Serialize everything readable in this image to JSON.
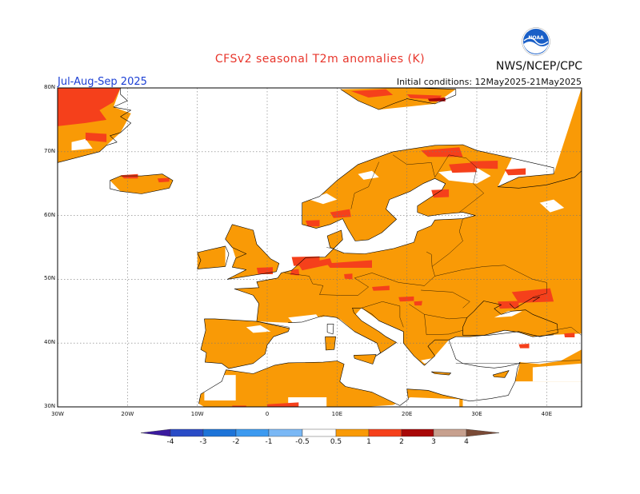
{
  "header": {
    "title": "CFSv2 seasonal T2m anomalies (K)",
    "org": "NWS/NCEP/CPC",
    "period": "Jul-Aug-Sep 2025",
    "initial_conditions": "Initial conditions: 12May2025-21May2025",
    "logo_text": "NOAA"
  },
  "map": {
    "projection": "lat-lon",
    "lon_range": [
      -30,
      45
    ],
    "lat_range": [
      30,
      80
    ],
    "lat_labels": [
      "80N",
      "70N",
      "60N",
      "50N",
      "40N",
      "30N"
    ],
    "lon_labels": [
      "30W",
      "20W",
      "10W",
      "0",
      "10E",
      "20E",
      "30E",
      "40E"
    ],
    "grid": true,
    "ocean_color": "#ffffff",
    "coast_color": "#000000"
  },
  "colorbar": {
    "thresholds": [
      "-4",
      "-3",
      "-2",
      "-1",
      "-0.5",
      "0.5",
      "1",
      "2",
      "3",
      "4"
    ],
    "colors": [
      "#3a1a9e",
      "#2a4cc6",
      "#1d74d8",
      "#3c9af0",
      "#7ab8f5",
      "#ffffff",
      "#f99a06",
      "#f5401b",
      "#a80808",
      "#c7a08e",
      "#7a4a36"
    ]
  },
  "anomaly_classes": {
    "light": "0.5 to 1 K",
    "medium": "1 to 2 K",
    "strong": "2 to 3 K"
  }
}
